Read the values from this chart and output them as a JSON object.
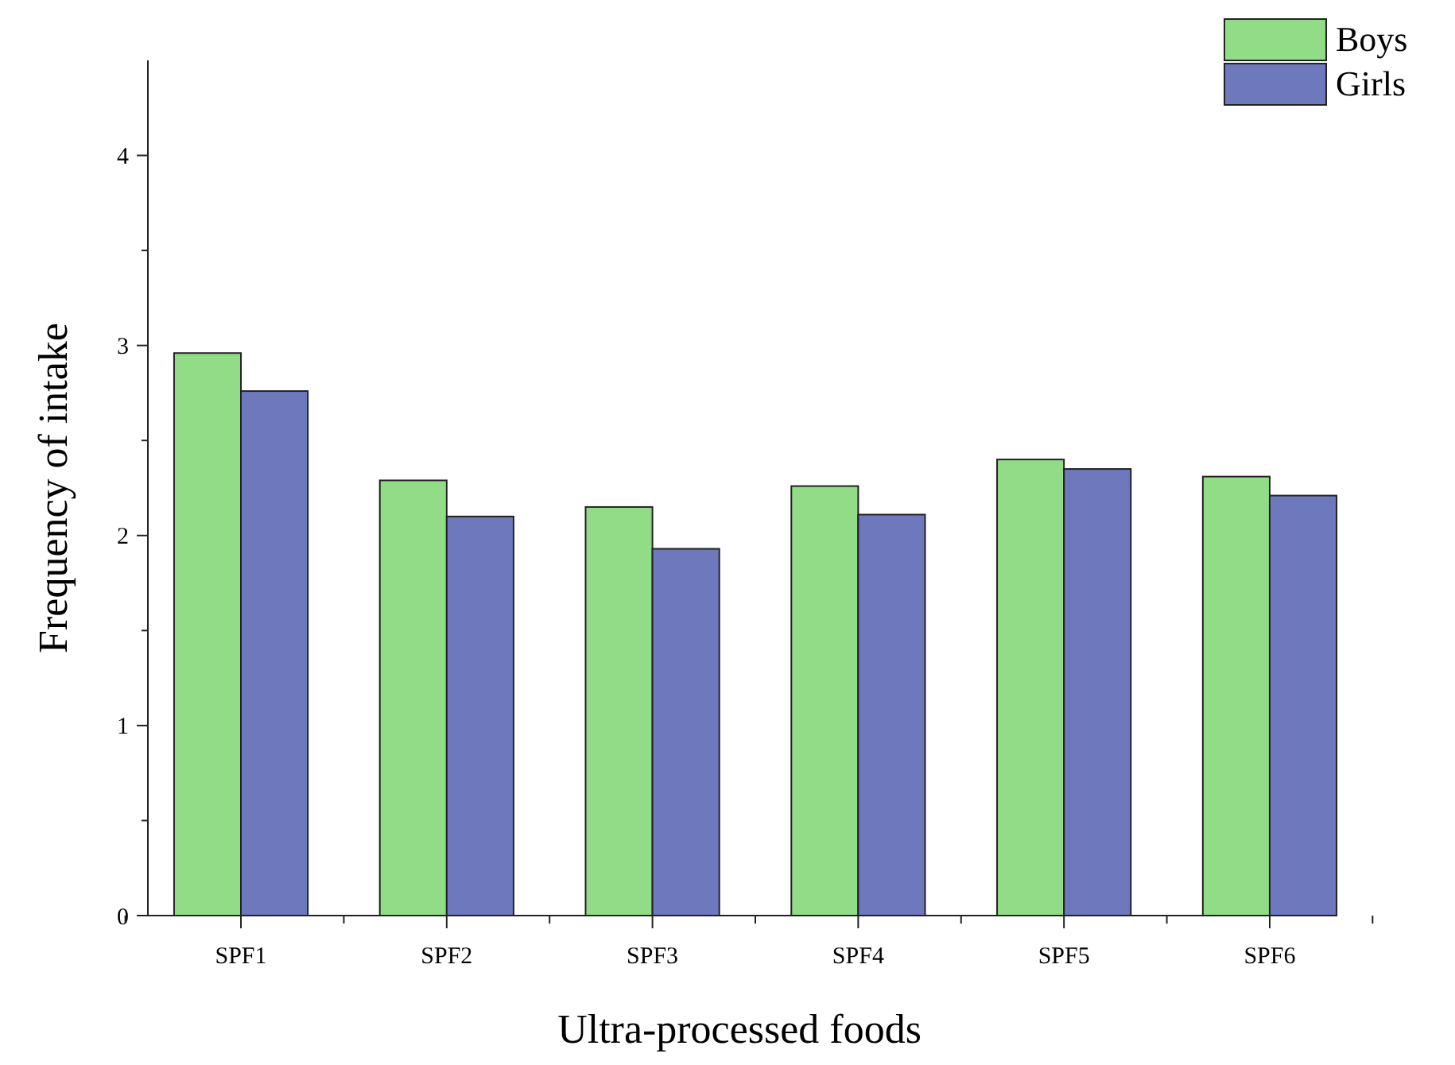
{
  "chart_data": {
    "type": "bar",
    "xlabel": "Ultra-processed foods",
    "ylabel": "Frequency of intake",
    "categories": [
      "SPF1",
      "SPF2",
      "SPF3",
      "SPF4",
      "SPF5",
      "SPF6"
    ],
    "series": [
      {
        "name": "Boys",
        "color": "#92dc88",
        "values": [
          2.96,
          2.29,
          2.15,
          2.26,
          2.4,
          2.31
        ]
      },
      {
        "name": "Girls",
        "color": "#6e78bd",
        "values": [
          2.76,
          2.1,
          1.93,
          2.11,
          2.35,
          2.21
        ]
      }
    ],
    "ylim": [
      0,
      4.5
    ],
    "yticks": [
      0,
      {
        "value": 0.5,
        "label": null
      },
      1,
      {
        "value": 1.5,
        "label": null
      },
      2,
      {
        "value": 2.5,
        "label": null
      },
      3,
      {
        "value": 3.5,
        "label": null
      },
      4
    ],
    "grid": false,
    "legend": "top right"
  }
}
